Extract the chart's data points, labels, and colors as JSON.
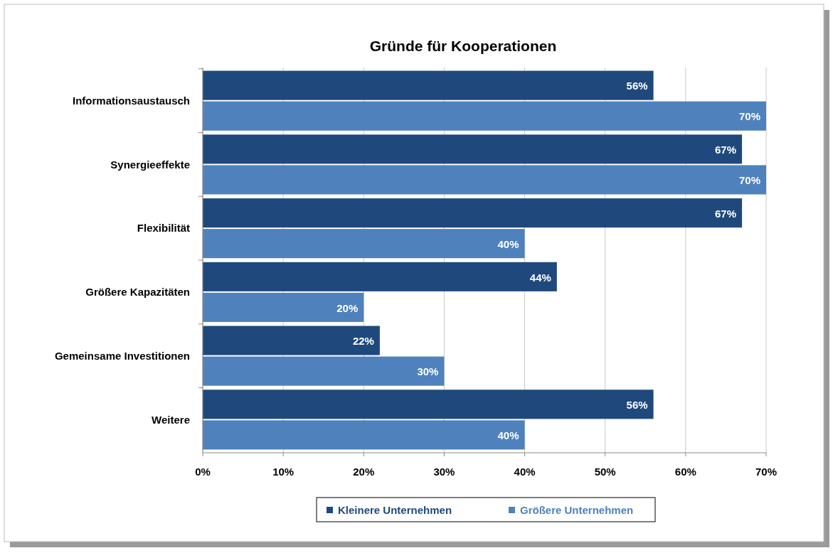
{
  "chart_data": {
    "type": "bar",
    "orientation": "horizontal",
    "title": "Gründe für Kooperationen",
    "categories": [
      "Informationsaustausch",
      "Synergieeffekte",
      "Flexibilität",
      "Größere Kapazitäten",
      "Gemeinsame Investitionen",
      "Weitere"
    ],
    "series": [
      {
        "name": "Kleinere Unternehmen",
        "color": "#1f497d",
        "values": [
          56,
          67,
          67,
          44,
          22,
          56
        ],
        "value_labels": [
          "56%",
          "67%",
          "67%",
          "44%",
          "22%",
          "56%"
        ]
      },
      {
        "name": "Größere Unternehmen",
        "color": "#4f81bd",
        "values": [
          70,
          70,
          40,
          20,
          30,
          40
        ],
        "value_labels": [
          "70%",
          "70%",
          "40%",
          "20%",
          "30%",
          "40%"
        ]
      }
    ],
    "xlim": [
      0,
      70
    ],
    "xticks": [
      {
        "value": 0,
        "label": "0%"
      },
      {
        "value": 10,
        "label": "10%"
      },
      {
        "value": 20,
        "label": "20%"
      },
      {
        "value": 30,
        "label": "30%"
      },
      {
        "value": 40,
        "label": "40%"
      },
      {
        "value": 50,
        "label": "50%"
      },
      {
        "value": 60,
        "label": "60%"
      },
      {
        "value": 70,
        "label": "70%"
      }
    ],
    "grid": "x",
    "legend": "bottom"
  }
}
